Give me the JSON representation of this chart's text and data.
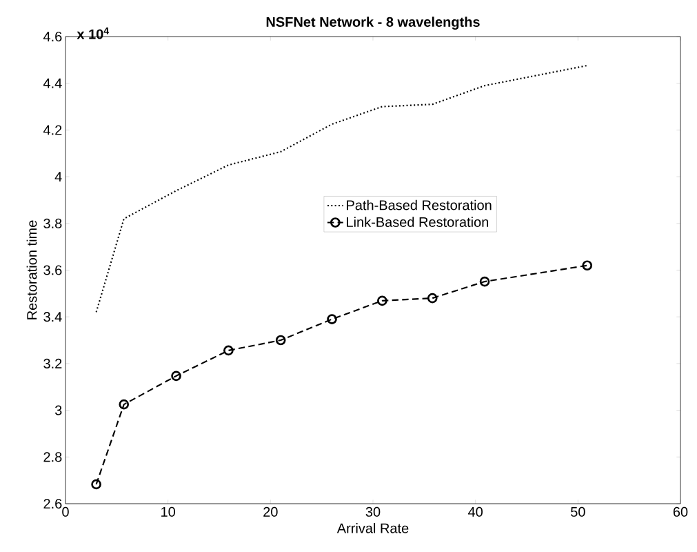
{
  "chart_data": {
    "type": "line",
    "title": "NSFNet Network - 8 wavelengths",
    "xlabel": "Arrival Rate",
    "ylabel": "Restoration time",
    "annotations": [
      "x 10$^{4}$"
    ],
    "x": [
      3,
      5.7,
      10.8,
      15.9,
      21,
      26,
      30.9,
      35.8,
      40.9,
      50.9
    ],
    "series": [
      {
        "name": "Path-Based Restoration",
        "color": "#000000",
        "line_style": "dotted",
        "marker": "none",
        "values": [
          3.42,
          3.82,
          3.94,
          4.05,
          4.107,
          4.225,
          4.3,
          4.31,
          4.39,
          4.476
        ]
      },
      {
        "name": "Link-Based Restoration",
        "color": "#000000",
        "line_style": "dashed",
        "marker": "circle",
        "values": [
          2.683,
          3.025,
          3.147,
          3.256,
          3.3,
          3.39,
          3.469,
          3.48,
          3.551,
          3.62
        ]
      }
    ],
    "xlim": [
      0,
      60
    ],
    "xticks": [
      0,
      10,
      20,
      30,
      40,
      50,
      60
    ],
    "ylim": [
      2.6,
      4.6
    ],
    "yticks": [
      2.6,
      2.8,
      3,
      3.2,
      3.4,
      3.6,
      3.8,
      4,
      4.2,
      4.4,
      4.6
    ],
    "legend": "right"
  }
}
